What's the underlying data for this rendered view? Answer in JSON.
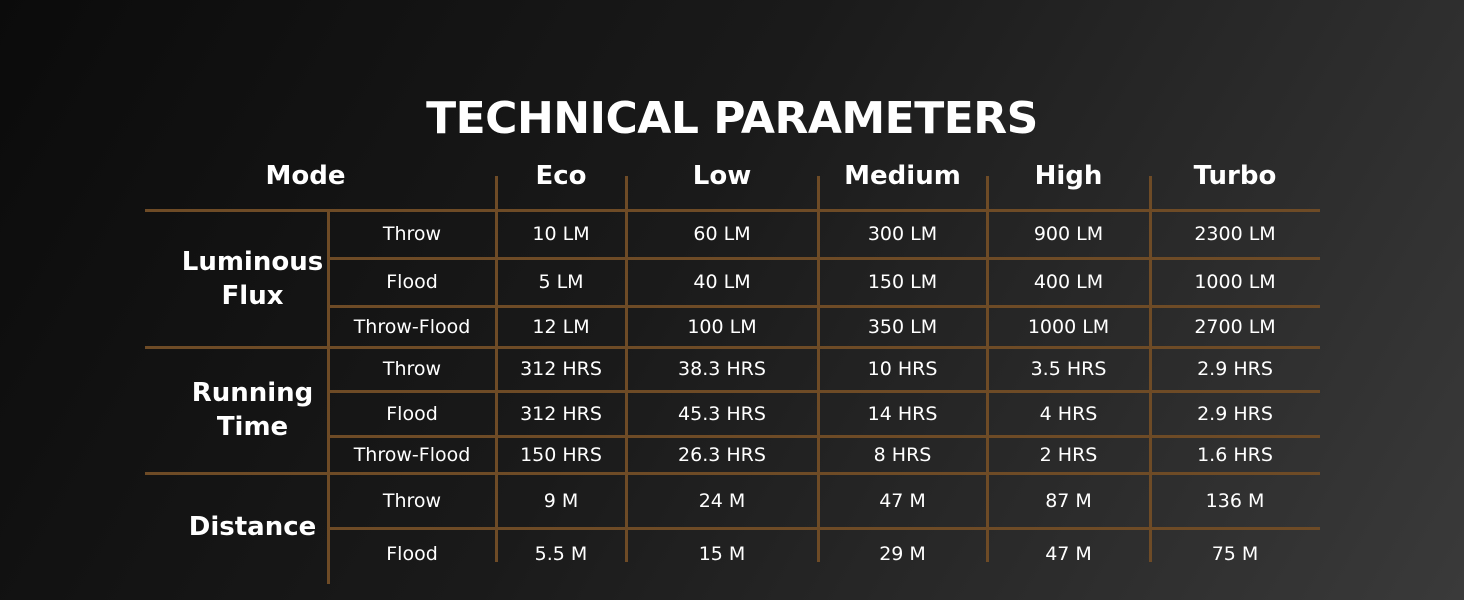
{
  "title": "TECHNICAL PARAMETERS",
  "table": {
    "header": [
      "Mode",
      "Eco",
      "Low",
      "Medium",
      "High",
      "Turbo"
    ],
    "groups": [
      {
        "label": "Luminous Flux",
        "rows": [
          {
            "type": "Throw",
            "cells": [
              "10 LM",
              "60 LM",
              "300 LM",
              "900 LM",
              "2300 LM"
            ]
          },
          {
            "type": "Flood",
            "cells": [
              "5 LM",
              "40 LM",
              "150 LM",
              "400 LM",
              "1000 LM"
            ]
          },
          {
            "type": "Throw-Flood",
            "cells": [
              "12 LM",
              "100 LM",
              "350 LM",
              "1000 LM",
              "2700 LM"
            ]
          }
        ]
      },
      {
        "label": "Running Time",
        "rows": [
          {
            "type": "Throw",
            "cells": [
              "312 HRS",
              "38.3 HRS",
              "10 HRS",
              "3.5 HRS",
              "2.9 HRS"
            ]
          },
          {
            "type": "Flood",
            "cells": [
              "312 HRS",
              "45.3 HRS",
              "14 HRS",
              "4 HRS",
              "2.9 HRS"
            ]
          },
          {
            "type": "Throw-Flood",
            "cells": [
              "150 HRS",
              "26.3 HRS",
              "8 HRS",
              "2 HRS",
              "1.6 HRS"
            ]
          }
        ]
      },
      {
        "label": "Distance",
        "rows": [
          {
            "type": "Throw",
            "cells": [
              "9 M",
              "24 M",
              "47 M",
              "87 M",
              "136 M"
            ]
          },
          {
            "type": "Flood",
            "cells": [
              "5.5 M",
              "15 M",
              "29 M",
              "47 M",
              "75 M"
            ]
          }
        ]
      }
    ]
  }
}
